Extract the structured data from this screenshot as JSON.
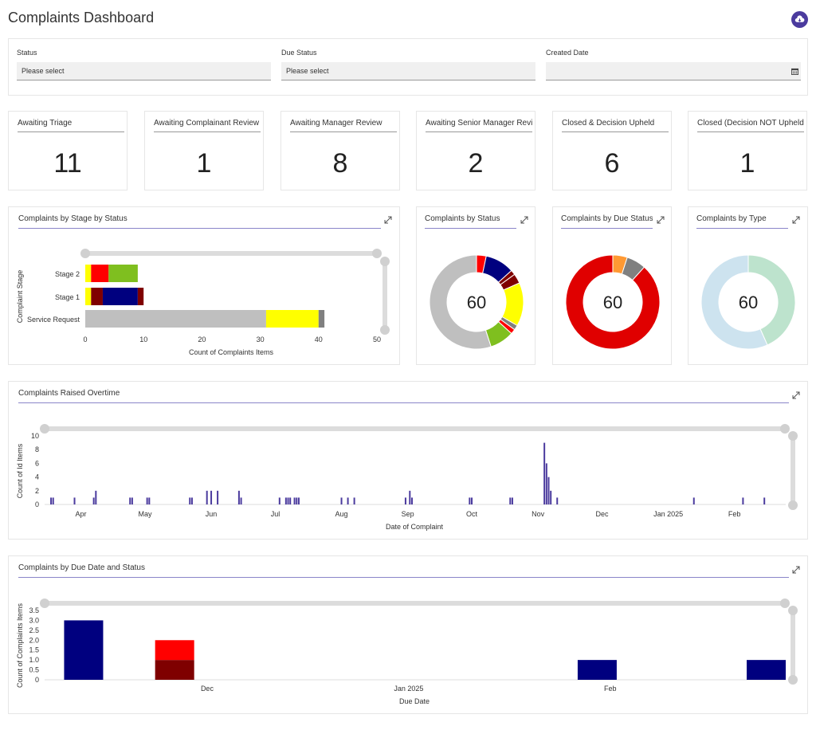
{
  "header": {
    "title": "Complaints Dashboard",
    "download_icon": "cloud-download-icon"
  },
  "filters": [
    {
      "label": "Status",
      "value": "Please select"
    },
    {
      "label": "Due Status",
      "value": "Please select"
    },
    {
      "label": "Created Date",
      "value": "",
      "icon": "calendar-icon"
    }
  ],
  "kpis": [
    {
      "label": "Awaiting Triage",
      "value": "11"
    },
    {
      "label": "Awaiting Complainant Review",
      "value": "1"
    },
    {
      "label": "Awaiting Manager Review",
      "value": "8"
    },
    {
      "label": "Awaiting Senior Manager Review",
      "value": "2"
    },
    {
      "label": "Closed & Decision Upheld",
      "value": "6"
    },
    {
      "label": "Closed (Decision NOT Upheld)",
      "value": "1"
    }
  ],
  "colors": {
    "navy": "#00007f",
    "red": "#ff0000",
    "darkred": "#7f0000",
    "yellow": "#ffff00",
    "green": "#7fbf1f",
    "grey": "#bfbfbf",
    "darkgrey": "#808080",
    "orange": "#ff9933",
    "lightblue": "#cde3ef",
    "lightgreen": "#bde3cd",
    "purple": "#4b3b9e"
  },
  "chart_data": [
    {
      "id": "stage",
      "type": "bar",
      "orientation": "horizontal",
      "stacked": true,
      "title": "Complaints by Stage by Status",
      "xlabel": "Count of Complaints Items",
      "ylabel": "Complaint Stage",
      "xlim": [
        0,
        50
      ],
      "x_ticks": [
        "0",
        "10",
        "20",
        "30",
        "40",
        "50"
      ],
      "categories": [
        "Stage 2",
        "Stage 1",
        "Service Request"
      ],
      "series": [
        {
          "color": "#ffff00",
          "values": [
            1,
            1,
            0
          ]
        },
        {
          "color": "#ff0000",
          "values": [
            3,
            0,
            0
          ]
        },
        {
          "color": "#7f0000",
          "values": [
            0,
            2,
            0
          ]
        },
        {
          "color": "#00007f",
          "values": [
            0,
            6,
            0
          ]
        },
        {
          "color": "#7f0000",
          "values": [
            0,
            1,
            0
          ]
        },
        {
          "color": "#7fbf1f",
          "values": [
            5,
            0,
            0
          ]
        },
        {
          "color": "#bfbfbf",
          "values": [
            0,
            0,
            31
          ]
        },
        {
          "color": "#ffff00",
          "values": [
            0,
            0,
            9
          ]
        },
        {
          "color": "#808080",
          "values": [
            0,
            0,
            1
          ]
        }
      ]
    },
    {
      "id": "status",
      "type": "pie",
      "title": "Complaints by Status",
      "center_label": "60",
      "slices": [
        {
          "value": 2,
          "color": "#ff0000"
        },
        {
          "value": 6,
          "color": "#00007f"
        },
        {
          "value": 1,
          "color": "#7f0000"
        },
        {
          "value": 2,
          "color": "#7f0000"
        },
        {
          "value": 9,
          "color": "#ffff00"
        },
        {
          "value": 1,
          "color": "#808080"
        },
        {
          "value": 1,
          "color": "#ff0000"
        },
        {
          "value": 5,
          "color": "#7fbf1f"
        },
        {
          "value": 33,
          "color": "#bfbfbf"
        }
      ]
    },
    {
      "id": "due",
      "type": "pie",
      "title": "Complaints by Due Status",
      "center_label": "60",
      "slices": [
        {
          "value": 3,
          "color": "#ff9933"
        },
        {
          "value": 4,
          "color": "#808080"
        },
        {
          "value": 53,
          "color": "#e00000"
        }
      ]
    },
    {
      "id": "type",
      "type": "pie",
      "title": "Complaints by Type",
      "center_label": "60",
      "slices": [
        {
          "value": 26,
          "color": "#bde3cd"
        },
        {
          "value": 34,
          "color": "#cde3ef"
        }
      ]
    },
    {
      "id": "overtime",
      "type": "bar",
      "title": "Complaints Raised Overtime",
      "xlabel": "Date of Complaint",
      "ylabel": "Count of Id Items",
      "ylim": [
        0,
        10
      ],
      "y_ticks": [
        "0",
        "2",
        "4",
        "6",
        "8",
        "10"
      ],
      "x_range": [
        "2024-03-15",
        "2025-02-25"
      ],
      "x_ticks": [
        {
          "date": "2024-04-01",
          "label": "Apr"
        },
        {
          "date": "2024-05-01",
          "label": "May"
        },
        {
          "date": "2024-06-01",
          "label": "Jun"
        },
        {
          "date": "2024-07-01",
          "label": "Jul"
        },
        {
          "date": "2024-08-01",
          "label": "Aug"
        },
        {
          "date": "2024-09-01",
          "label": "Sep"
        },
        {
          "date": "2024-10-01",
          "label": "Oct"
        },
        {
          "date": "2024-11-01",
          "label": "Nov"
        },
        {
          "date": "2024-12-01",
          "label": "Dec"
        },
        {
          "date": "2025-01-01",
          "label": "Jan 2025"
        },
        {
          "date": "2025-02-01",
          "label": "Feb"
        }
      ],
      "points": [
        [
          "2024-03-18",
          1
        ],
        [
          "2024-03-19",
          1
        ],
        [
          "2024-03-29",
          1
        ],
        [
          "2024-04-07",
          1
        ],
        [
          "2024-04-08",
          2
        ],
        [
          "2024-04-24",
          1
        ],
        [
          "2024-04-25",
          1
        ],
        [
          "2024-05-02",
          1
        ],
        [
          "2024-05-03",
          1
        ],
        [
          "2024-05-22",
          1
        ],
        [
          "2024-05-23",
          1
        ],
        [
          "2024-05-30",
          2
        ],
        [
          "2024-06-01",
          2
        ],
        [
          "2024-06-04",
          2
        ],
        [
          "2024-06-14",
          2
        ],
        [
          "2024-06-15",
          1
        ],
        [
          "2024-07-03",
          1
        ],
        [
          "2024-07-06",
          1
        ],
        [
          "2024-07-07",
          1
        ],
        [
          "2024-07-08",
          1
        ],
        [
          "2024-07-10",
          1
        ],
        [
          "2024-07-11",
          1
        ],
        [
          "2024-07-12",
          1
        ],
        [
          "2024-08-01",
          1
        ],
        [
          "2024-08-04",
          1
        ],
        [
          "2024-08-07",
          1
        ],
        [
          "2024-08-31",
          1
        ],
        [
          "2024-09-02",
          2
        ],
        [
          "2024-09-03",
          1
        ],
        [
          "2024-09-30",
          1
        ],
        [
          "2024-10-01",
          1
        ],
        [
          "2024-10-19",
          1
        ],
        [
          "2024-10-20",
          1
        ],
        [
          "2024-11-04",
          9
        ],
        [
          "2024-11-05",
          6
        ],
        [
          "2024-11-06",
          4
        ],
        [
          "2024-11-07",
          2
        ],
        [
          "2024-11-10",
          1
        ],
        [
          "2025-01-13",
          1
        ],
        [
          "2025-02-05",
          1
        ],
        [
          "2025-02-15",
          1
        ]
      ]
    },
    {
      "id": "duedate",
      "type": "bar",
      "stacked": true,
      "title": "Complaints by Due Date and Status",
      "xlabel": "Due Date",
      "ylabel": "Count of Complaints Items",
      "ylim": [
        0,
        3.5
      ],
      "y_ticks": [
        "0",
        "0.5",
        "1.0",
        "1.5",
        "2.0",
        "2.5",
        "3.0",
        "3.5"
      ],
      "x_range": [
        "2024-11-06",
        "2025-02-28"
      ],
      "x_ticks": [
        {
          "date": "2024-12-01",
          "label": "Dec"
        },
        {
          "date": "2025-01-01",
          "label": "Jan 2025"
        },
        {
          "date": "2025-02-01",
          "label": "Feb"
        }
      ],
      "bars": [
        {
          "date": "2024-11-12",
          "segments": [
            {
              "value": 3,
              "color": "#00007f"
            }
          ]
        },
        {
          "date": "2024-11-26",
          "segments": [
            {
              "value": 1,
              "color": "#7f0000"
            },
            {
              "value": 1,
              "color": "#ff0000"
            }
          ]
        },
        {
          "date": "2025-01-30",
          "segments": [
            {
              "value": 1,
              "color": "#00007f"
            }
          ]
        },
        {
          "date": "2025-02-25",
          "segments": [
            {
              "value": 1,
              "color": "#00007f"
            }
          ]
        }
      ]
    }
  ]
}
